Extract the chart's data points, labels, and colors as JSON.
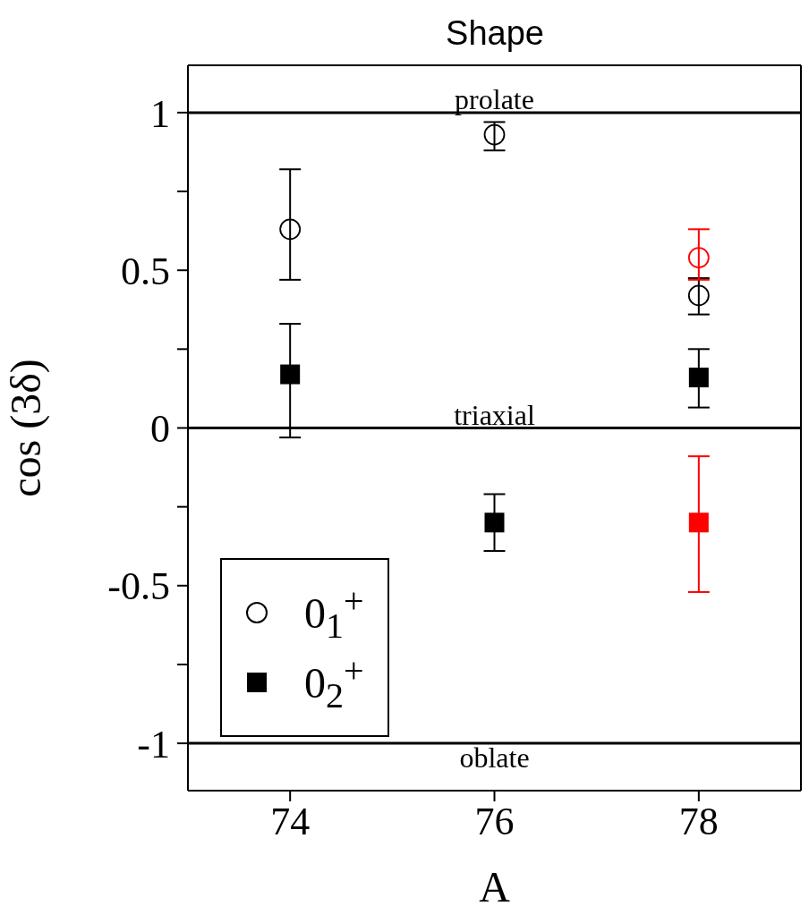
{
  "chart_data": {
    "type": "scatter",
    "title": "Shape",
    "xlabel": "A",
    "ylabel": "cos (3δ)",
    "xlim": [
      73,
      79
    ],
    "xticks": [
      74,
      76,
      78
    ],
    "ylim": [
      -1.15,
      1.15
    ],
    "yticks": [
      -1,
      {
        "value": -0.75,
        "label": null
      },
      -0.5,
      {
        "value": -0.25,
        "label": null
      },
      0,
      {
        "value": 0.25,
        "label": null
      },
      0.5,
      {
        "value": 0.75,
        "label": null
      },
      1
    ],
    "series": [
      {
        "name": "0$_{1}$$^{+}$",
        "color": "#000000",
        "marker": "circle",
        "x": [
          74,
          76,
          78
        ],
        "values": [
          0.63,
          0.93,
          0.42
        ],
        "errors": [
          [
            0.47,
            0.82
          ],
          [
            0.88,
            0.97
          ],
          [
            0.36,
            0.475
          ]
        ]
      },
      {
        "name": "0$_{2}$$^{+}$",
        "color": "#000000",
        "marker": "square",
        "x": [
          74,
          76,
          78
        ],
        "values": [
          0.17,
          -0.3,
          0.16
        ],
        "errors": [
          [
            -0.03,
            0.33
          ],
          [
            -0.39,
            -0.21
          ],
          [
            0.065,
            0.25
          ]
        ]
      },
      {
        "color": "#ff0000",
        "marker": "circle",
        "x": [
          78
        ],
        "values": [
          0.54
        ],
        "errors": [
          [
            0.47,
            0.63
          ]
        ]
      },
      {
        "color": "#ff0000",
        "marker": "square",
        "x": [
          78
        ],
        "values": [
          -0.3
        ],
        "errors": [
          [
            -0.52,
            -0.09
          ]
        ]
      }
    ],
    "ref_lines": [
      {
        "axis": "y",
        "value": 1,
        "label": "prolate"
      },
      {
        "axis": "y",
        "value": 0,
        "label": "triaxial"
      },
      {
        "axis": "y",
        "value": -1,
        "label": "oblate"
      }
    ],
    "legend": "bottom left"
  }
}
